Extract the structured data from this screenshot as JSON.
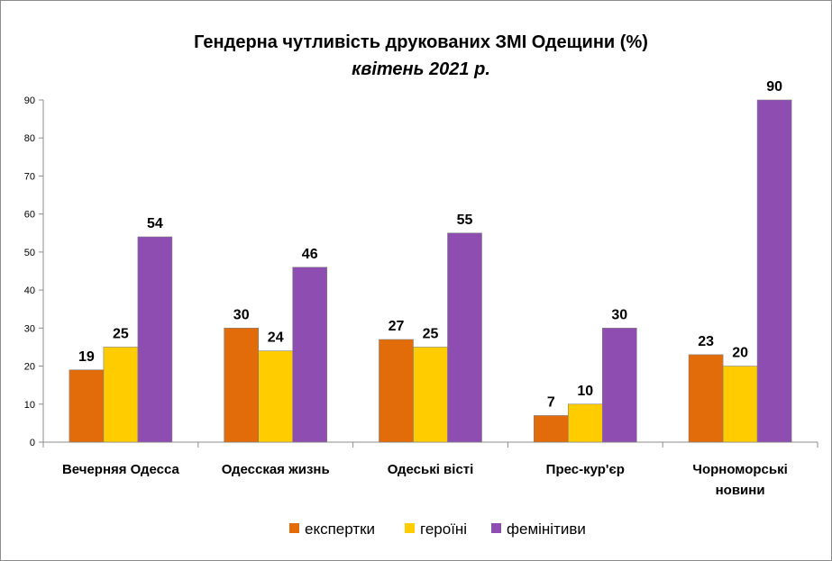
{
  "chart_data": {
    "type": "bar",
    "title": "Гендерна чутливість друкованих ЗМІ Одещини (%)",
    "subtitle": "квітень 2021 р.",
    "categories": [
      "Вечерняя Одесса",
      "Одесская жизнь",
      "Одеські вісті",
      "Прес-кур'єр",
      "Чорноморські новини"
    ],
    "category_lines": [
      [
        "Вечерняя Одесса"
      ],
      [
        "Одесская жизнь"
      ],
      [
        "Одеські вісті"
      ],
      [
        "Прес-кур'єр"
      ],
      [
        "Чорноморські",
        "новини"
      ]
    ],
    "series": [
      {
        "name": "експертки",
        "color": "#E36C0A",
        "values": [
          19,
          30,
          27,
          7,
          23
        ]
      },
      {
        "name": "героїні",
        "color": "#FFCC00",
        "values": [
          25,
          24,
          25,
          10,
          20
        ]
      },
      {
        "name": "фемінітиви",
        "color": "#8E4DB0",
        "values": [
          54,
          46,
          55,
          30,
          90
        ]
      }
    ],
    "y_ticks": [
      0,
      10,
      20,
      30,
      40,
      50,
      60,
      70,
      80,
      90
    ],
    "ylim": [
      0,
      90
    ],
    "xlabel": "",
    "ylabel": "",
    "legend_position": "bottom",
    "grid": false
  }
}
